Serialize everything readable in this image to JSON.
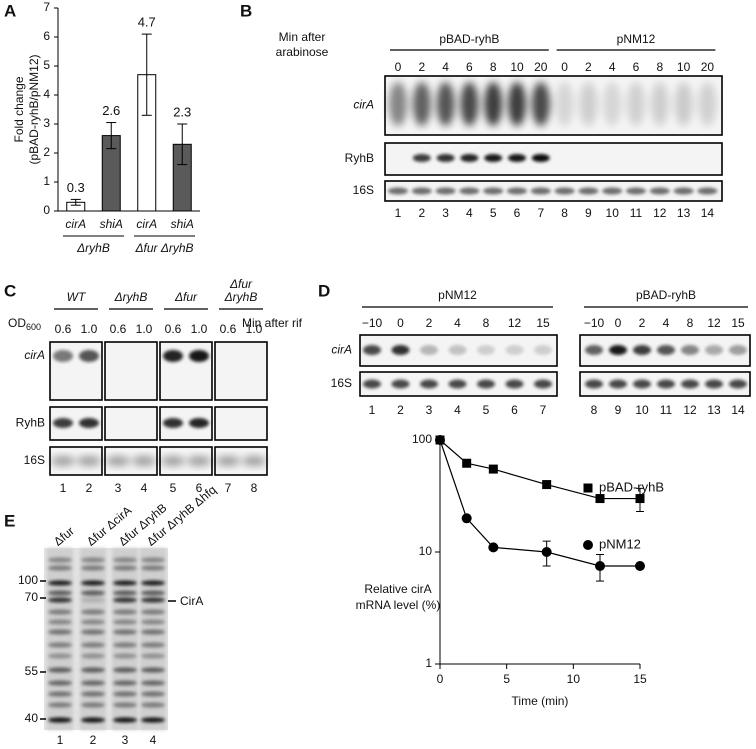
{
  "panel_letters": [
    "A",
    "B",
    "C",
    "D",
    "E"
  ],
  "chart_data": [
    {
      "type": "bar",
      "ylabel": [
        "Fold change",
        "(pBAD-ryhB/pNM12)"
      ],
      "categories": [
        "cirA",
        "shiA",
        "cirA",
        "shiA"
      ],
      "groups": [
        "ΔryhB",
        "Δfur ΔryhB"
      ],
      "values": [
        0.3,
        2.6,
        4.7,
        2.3
      ],
      "errors": [
        0.1,
        0.45,
        1.4,
        0.7
      ],
      "colors": [
        "#ffffff",
        "#5a5a5a",
        "#ffffff",
        "#5a5a5a"
      ],
      "ylim": [
        0,
        7
      ],
      "yticks": [
        0,
        1,
        2,
        3,
        4,
        5,
        6,
        7
      ]
    },
    {
      "type": "line",
      "ylabel": [
        "Relative cirA",
        "mRNA level (%)"
      ],
      "xlabel": "Time (min)",
      "x": [
        0,
        2,
        4,
        8,
        12,
        15
      ],
      "series": [
        {
          "name": "pBAD-ryhB",
          "color": "#000000",
          "marker": "square",
          "values": [
            100,
            62,
            55,
            40,
            30,
            30
          ],
          "errors": [
            null,
            null,
            null,
            null,
            null,
            7
          ]
        },
        {
          "name": "pNM12",
          "color": "#000000",
          "marker": "circle",
          "values": [
            100,
            20,
            11,
            10,
            7.5,
            7.5
          ],
          "errors": [
            null,
            null,
            null,
            2.5,
            2,
            null
          ]
        }
      ],
      "xlim": [
        0,
        15
      ],
      "xticks": [
        0,
        5,
        10,
        15
      ],
      "ylim": [
        1,
        100
      ],
      "yticks": [
        1,
        10,
        100
      ],
      "log_y": true
    }
  ],
  "blot_b": {
    "header": [
      "Min after",
      "arabinose"
    ],
    "groups": [
      "pBAD-ryhB",
      "pNM12"
    ],
    "times": [
      0,
      2,
      4,
      6,
      8,
      10,
      20,
      0,
      2,
      4,
      6,
      8,
      10,
      20
    ],
    "rows": [
      "cirA",
      "RyhB",
      "16S"
    ],
    "lanes": [
      1,
      2,
      3,
      4,
      5,
      6,
      7,
      8,
      9,
      10,
      11,
      12,
      13,
      14
    ]
  },
  "blot_c": {
    "groups": [
      [
        "WT"
      ],
      [
        "ΔryhB"
      ],
      [
        "Δfur"
      ],
      [
        "Δfur",
        "ΔryhB"
      ]
    ],
    "od_label": "OD",
    "od_sub": "600",
    "od": [
      "0.6",
      "1.0",
      "0.6",
      "1.0",
      "0.6",
      "1.0",
      "0.6",
      "1.0"
    ],
    "rows": [
      "cirA",
      "RyhB",
      "16S"
    ],
    "lanes": [
      1,
      2,
      3,
      4,
      5,
      6,
      7,
      8
    ]
  },
  "blot_d": {
    "header": "Min after rif",
    "groups": [
      "pNM12",
      "pBAD-ryhB"
    ],
    "times": [
      "−10",
      "0",
      "2",
      "4",
      "8",
      "12",
      "15",
      "−10",
      "0",
      "2",
      "4",
      "8",
      "12",
      "15"
    ],
    "rows": [
      "cirA",
      "16S"
    ],
    "lanes": [
      1,
      2,
      3,
      4,
      5,
      6,
      7,
      8,
      9,
      10,
      11,
      12,
      13,
      14
    ]
  },
  "gel_e": {
    "lane_labels": [
      "Δfur",
      "Δfur ΔcirA",
      "Δfur ΔryhB",
      "Δfur ΔryhB Δhfq"
    ],
    "markers": [
      "100",
      "70",
      "55",
      "40"
    ],
    "band_label": "CirA",
    "lanes": [
      1,
      2,
      3,
      4
    ]
  }
}
